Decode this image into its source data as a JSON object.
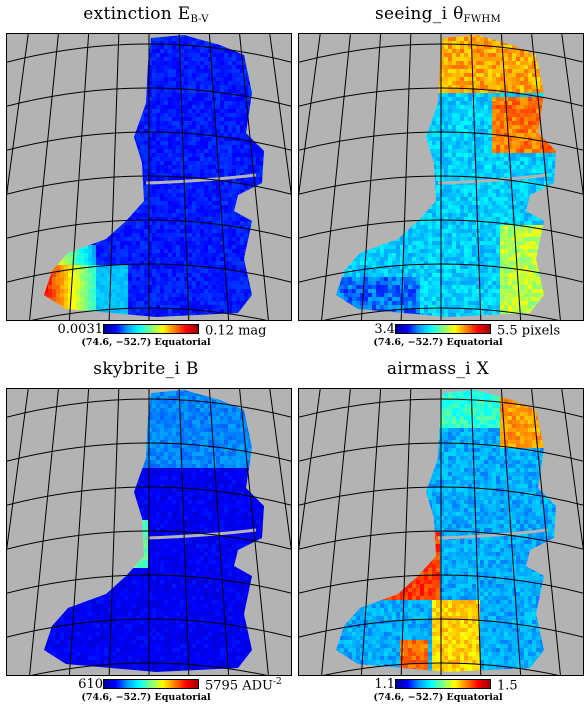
{
  "panels": [
    {
      "title": "extinction E",
      "sub": "B-V",
      "min": "0.0031",
      "max": "0.12 mag",
      "maxsup": "",
      "proj": "(74.6,  −52.7) Equatorial",
      "scheme": "ext"
    },
    {
      "title": "seeing_i θ",
      "sub": "FWHM",
      "min": "3.4",
      "max": "5.5 pixels",
      "maxsup": "",
      "proj": "(74.6,  −52.7) Equatorial",
      "scheme": "see"
    },
    {
      "title": "skybrite_i B",
      "sub": "",
      "min": "610",
      "max": "5795 ADU",
      "maxsup": "-2",
      "proj": "(74.6,  −52.7) Equatorial",
      "scheme": "sky"
    },
    {
      "title": "airmass_i X",
      "sub": "",
      "min": "1.1",
      "max": "1.5",
      "maxsup": "",
      "proj": "(74.6,  −52.7) Equatorial",
      "scheme": "air"
    }
  ],
  "colors": {
    "background": "#b3b3b3",
    "grid": "#000000",
    "colormap": [
      "#000090",
      "#0000ff",
      "#00a0ff",
      "#00ffff",
      "#80ff80",
      "#ffff00",
      "#ff8000",
      "#ff0000",
      "#a00000"
    ]
  }
}
